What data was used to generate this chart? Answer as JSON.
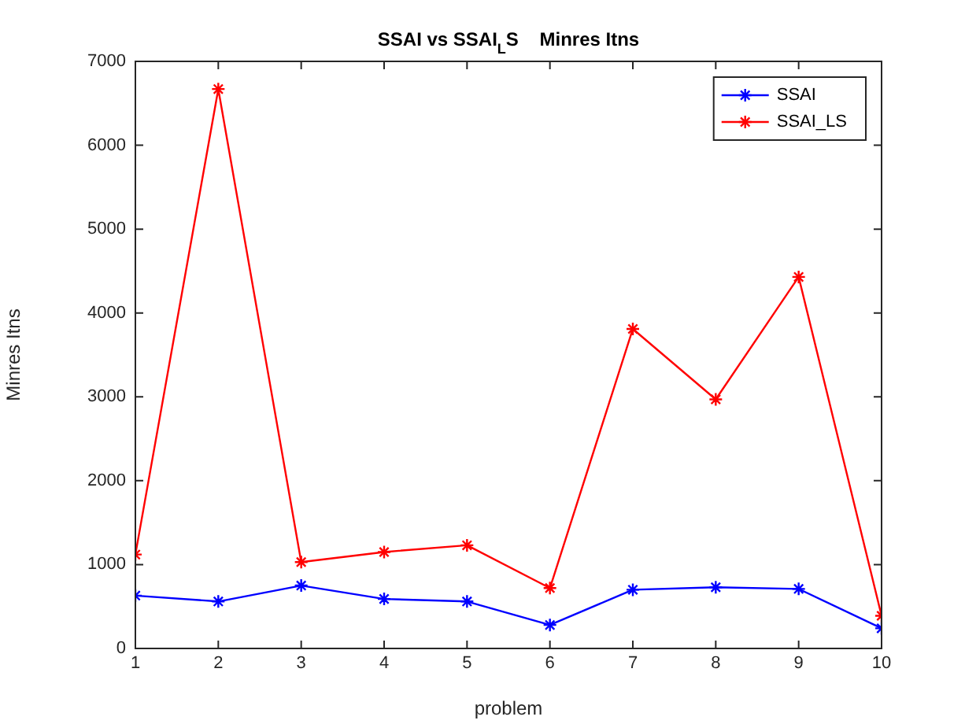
{
  "chart_data": {
    "type": "line",
    "title": "SSAI vs SSAI$_{L}$S    Minres Itns",
    "xlabel": "problem",
    "ylabel": "Minres Itns",
    "x": [
      1,
      2,
      3,
      4,
      5,
      6,
      7,
      8,
      9,
      10
    ],
    "series": [
      {
        "name": "SSAI",
        "color": "#0000ff",
        "values": [
          630,
          560,
          750,
          590,
          560,
          280,
          700,
          730,
          710,
          240
        ]
      },
      {
        "name": "SSAI_LS",
        "color": "#ff0000",
        "values": [
          1120,
          6670,
          1030,
          1150,
          1230,
          720,
          3810,
          2970,
          4430,
          390
        ]
      }
    ],
    "xlim": [
      1,
      10
    ],
    "xticks": [
      1,
      2,
      3,
      4,
      5,
      6,
      7,
      8,
      9,
      10
    ],
    "ylim": [
      0,
      7000
    ],
    "yticks": [
      0,
      1000,
      2000,
      3000,
      4000,
      5000,
      6000,
      7000
    ],
    "legend": "top right",
    "marker": "cross",
    "line_style": "solid"
  }
}
